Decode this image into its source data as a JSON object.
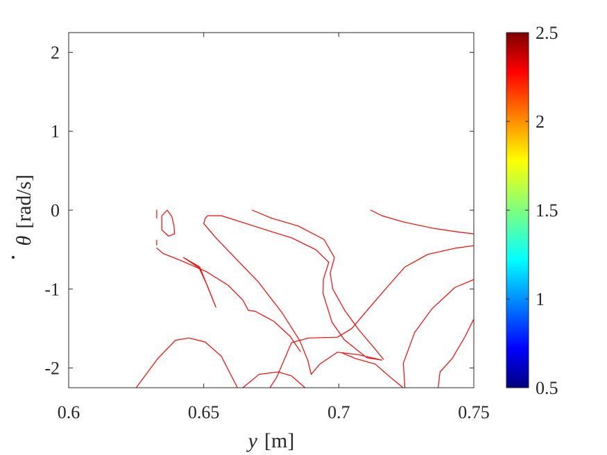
{
  "chart_data": {
    "type": "line",
    "title": "",
    "xlabel_var": "y",
    "xlabel_unit": "[m]",
    "ylabel_var": "θ",
    "ylabel_unit": "[rad/s]",
    "xlim": [
      0.6,
      0.75
    ],
    "ylim": [
      -2.25,
      2.25
    ],
    "xticks": [
      0.6,
      0.65,
      0.7,
      0.75
    ],
    "xtick_labels": [
      "0.6",
      "0.65",
      "0.7",
      "0.75"
    ],
    "yticks": [
      2,
      1,
      0,
      -1,
      -2
    ],
    "ytick_labels": [
      "2",
      "1",
      "0",
      "-1",
      "-2"
    ],
    "grid": false,
    "line_color": "#ff0000",
    "colorbar": {
      "range": [
        0.5,
        2.5
      ],
      "ticks": [
        2.5,
        2,
        1.5,
        1,
        0.5
      ],
      "tick_labels": [
        "2.5",
        "2",
        "1.5",
        "1",
        "0.5"
      ],
      "colormap": "jet"
    },
    "curves": [
      {
        "points": [
          [
            0.6326,
            -0.48
          ],
          [
            0.635,
            -0.55
          ],
          [
            0.641,
            -0.63
          ],
          [
            0.651,
            -0.78
          ],
          [
            0.659,
            -0.95
          ],
          [
            0.6645,
            -1.14
          ],
          [
            0.6665,
            -1.27
          ],
          [
            0.669,
            -1.28
          ],
          [
            0.676,
            -1.41
          ],
          [
            0.682,
            -1.6
          ],
          [
            0.6858,
            -1.79
          ]
        ]
      },
      {
        "points": [
          [
            0.6326,
            -0.38
          ],
          [
            0.6326,
            -0.44
          ]
        ]
      },
      {
        "points": [
          [
            0.6326,
            0
          ],
          [
            0.6326,
            -0.1
          ]
        ]
      },
      {
        "points": [
          [
            0.6365,
            0
          ],
          [
            0.6345,
            -0.07
          ],
          [
            0.6345,
            -0.25
          ],
          [
            0.637,
            -0.33
          ],
          [
            0.6392,
            -0.3
          ],
          [
            0.639,
            -0.2
          ],
          [
            0.6382,
            -0.08
          ],
          [
            0.6365,
            0
          ]
        ]
      },
      {
        "points": [
          [
            0.6506,
            -0.1
          ],
          [
            0.65,
            -0.17
          ],
          [
            0.6545,
            -0.35
          ],
          [
            0.6615,
            -0.6
          ],
          [
            0.67,
            -0.9
          ],
          [
            0.679,
            -1.3
          ],
          [
            0.6855,
            -1.65
          ],
          [
            0.6885,
            -1.9
          ],
          [
            0.6898,
            -2.08
          ],
          [
            0.693,
            -1.95
          ],
          [
            0.6995,
            -1.8
          ],
          [
            0.707,
            -1.83
          ],
          [
            0.716,
            -1.9
          ],
          [
            0.7104,
            -1.87
          ],
          [
            0.702,
            -1.64
          ],
          [
            0.6975,
            -1.42
          ],
          [
            0.6942,
            -1.06
          ],
          [
            0.6943,
            -0.88
          ],
          [
            0.6963,
            -0.66
          ],
          [
            0.6915,
            -0.5
          ],
          [
            0.6825,
            -0.35
          ],
          [
            0.673,
            -0.25
          ],
          [
            0.663,
            -0.14
          ],
          [
            0.6565,
            -0.07
          ],
          [
            0.6515,
            -0.07
          ],
          [
            0.6506,
            -0.1
          ]
        ]
      },
      {
        "points": [
          [
            0.668,
            0
          ],
          [
            0.675,
            -0.1
          ],
          [
            0.685,
            -0.2
          ],
          [
            0.6945,
            -0.37
          ],
          [
            0.6984,
            -0.6
          ],
          [
            0.6968,
            -0.8
          ],
          [
            0.6978,
            -1.0
          ],
          [
            0.7022,
            -1.27
          ],
          [
            0.7075,
            -1.52
          ],
          [
            0.7137,
            -1.77
          ],
          [
            0.7165,
            -1.89
          ]
        ]
      },
      {
        "points": [
          [
            0.6425,
            -0.6
          ],
          [
            0.6483,
            -0.73
          ],
          [
            0.6515,
            -0.97
          ],
          [
            0.6545,
            -1.23
          ],
          [
            0.6485,
            -0.72
          ],
          [
            0.6425,
            -0.6
          ]
        ]
      },
      {
        "points": [
          [
            0.7118,
            0
          ],
          [
            0.716,
            -0.07
          ],
          [
            0.724,
            -0.15
          ],
          [
            0.735,
            -0.23
          ],
          [
            0.745,
            -0.28
          ],
          [
            0.75,
            -0.3
          ]
        ]
      },
      {
        "points": [
          [
            0.6745,
            -2.25
          ],
          [
            0.677,
            -2.12
          ],
          [
            0.6825,
            -1.68
          ],
          [
            0.6888,
            -1.62
          ],
          [
            0.6995,
            -1.61
          ],
          [
            0.7048,
            -1.5
          ],
          [
            0.711,
            -1.25
          ],
          [
            0.7178,
            -0.98
          ],
          [
            0.7245,
            -0.72
          ],
          [
            0.733,
            -0.56
          ],
          [
            0.7435,
            -0.48
          ],
          [
            0.75,
            -0.45
          ]
        ]
      },
      {
        "points": [
          [
            0.625,
            -2.25
          ],
          [
            0.633,
            -1.88
          ],
          [
            0.6395,
            -1.65
          ],
          [
            0.6445,
            -1.62
          ],
          [
            0.6505,
            -1.67
          ],
          [
            0.6565,
            -1.85
          ],
          [
            0.6625,
            -2.25
          ]
        ]
      },
      {
        "points": [
          [
            0.6645,
            -2.25
          ],
          [
            0.6705,
            -2.08
          ],
          [
            0.6775,
            -2.05
          ],
          [
            0.6825,
            -2.1
          ],
          [
            0.6875,
            -2.25
          ]
        ]
      },
      {
        "points": [
          [
            0.7013,
            -1.81
          ],
          [
            0.7062,
            -1.88
          ],
          [
            0.7135,
            -1.95
          ],
          [
            0.7185,
            -2.1
          ],
          [
            0.7238,
            -2.25
          ]
        ]
      },
      {
        "points": [
          [
            0.7245,
            -2.25
          ],
          [
            0.7239,
            -1.94
          ],
          [
            0.7281,
            -1.55
          ],
          [
            0.7345,
            -1.25
          ],
          [
            0.743,
            -0.98
          ],
          [
            0.75,
            -0.88
          ]
        ]
      },
      {
        "points": [
          [
            0.7368,
            -2.25
          ],
          [
            0.7375,
            -2.05
          ],
          [
            0.742,
            -1.88
          ],
          [
            0.7468,
            -1.6
          ],
          [
            0.75,
            -1.38
          ]
        ]
      }
    ]
  }
}
